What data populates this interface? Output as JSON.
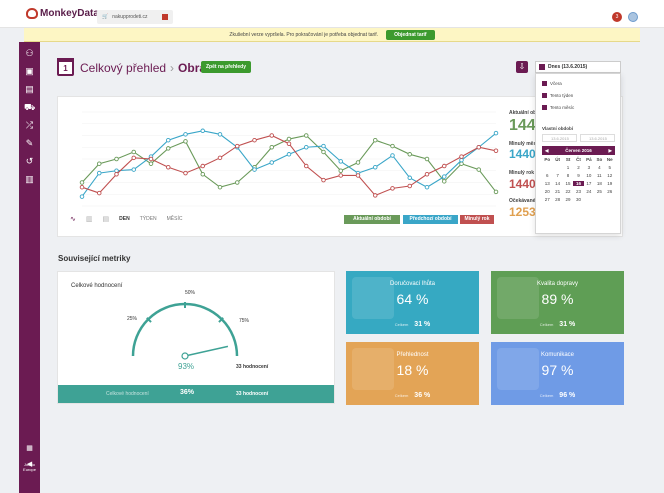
{
  "app": {
    "logo": "MonkeyData",
    "tab": "nakupprodeti.cz",
    "notifications": "3"
  },
  "banner": {
    "text": "Zkušební verze vypršela. Pro pokračování je potřeba objednat tarif.",
    "button": "Objednat tarif"
  },
  "sidebar": {
    "icons": [
      "users-icon",
      "chart-money-icon",
      "document-icon",
      "cart-icon",
      "shuffle-icon",
      "tools-icon",
      "history-icon",
      "bars-icon"
    ],
    "footer": "Job to Europe"
  },
  "header": {
    "date_day": "1",
    "title": "Celkový přehled",
    "subtitle": "Obrat",
    "back_button": "Zpět na přehledy",
    "date_range": "Dnes (13.6.2015)"
  },
  "chart_data": {
    "type": "line",
    "x": [
      1,
      2,
      3,
      4,
      5,
      6,
      7,
      8,
      9,
      10,
      11,
      12,
      13,
      14,
      15,
      16,
      17,
      18,
      19,
      20,
      21,
      22,
      23,
      24,
      25
    ],
    "yticks": [
      "",
      "",
      "",
      "",
      "",
      "",
      "",
      "",
      ""
    ],
    "ylim": [
      0,
      8
    ],
    "series": [
      {
        "name": "Aktuální období",
        "color": "#6a9a5a",
        "values": [
          2.0,
          3.6,
          4.0,
          4.6,
          3.6,
          4.9,
          5.5,
          2.7,
          1.6,
          2.0,
          3.3,
          5.0,
          5.7,
          6.0,
          4.6,
          3.0,
          3.7,
          5.6,
          5.1,
          4.4,
          4.0,
          2.1,
          3.6,
          3.1,
          1.2
        ]
      },
      {
        "name": "Předchozí období",
        "color": "#3aa6c8",
        "values": [
          0.8,
          2.8,
          3.0,
          3.1,
          4.2,
          5.6,
          6.1,
          6.4,
          6.1,
          5.0,
          3.1,
          3.7,
          4.4,
          5.0,
          5.1,
          3.8,
          2.8,
          3.3,
          4.3,
          2.4,
          1.6,
          2.5,
          3.9,
          5.0,
          6.2
        ]
      },
      {
        "name": "Minulý rok",
        "color": "#c05050",
        "values": [
          1.6,
          1.1,
          2.7,
          4.1,
          4.0,
          3.3,
          2.8,
          3.4,
          4.1,
          5.1,
          5.6,
          6.0,
          5.3,
          3.4,
          2.2,
          2.6,
          2.6,
          0.9,
          1.5,
          1.7,
          2.7,
          3.4,
          4.2,
          5.0,
          4.7
        ]
      }
    ]
  },
  "chart_controls": {
    "day": "DEN",
    "week": "TÝDEN",
    "month": "MĚSÍC"
  },
  "stats": [
    {
      "label": "Aktuální období",
      "value": "144",
      "color": "#6a9a5a"
    },
    {
      "label": "Minulý měsíc",
      "value": "1440",
      "color": "#3aa6c8"
    },
    {
      "label": "Minulý rok",
      "value": "1440",
      "color": "#c05050"
    },
    {
      "label": "Očekávané",
      "value": "1253",
      "color": "#e0a050"
    }
  ],
  "dropdown": {
    "options": [
      "Včera",
      "Tento týden",
      "Tento měsíc"
    ],
    "custom_label": "Vlastní období",
    "from": "13.6.2015",
    "to": "13.6.2015",
    "month": "Červen 2016",
    "weekdays": [
      "Po",
      "Út",
      "St",
      "Čt",
      "Pá",
      "So",
      "Ne"
    ],
    "days": [
      "",
      "",
      "1",
      "2",
      "3",
      "4",
      "5",
      "6",
      "7",
      "8",
      "9",
      "10",
      "11",
      "12",
      "13",
      "14",
      "15",
      "16",
      "17",
      "18",
      "19",
      "20",
      "21",
      "22",
      "23",
      "24",
      "25",
      "26",
      "27",
      "28",
      "29",
      "30",
      "",
      ""
    ],
    "today": "16"
  },
  "related": {
    "title": "Související metriky"
  },
  "gauge": {
    "title": "Celkové hodnocení",
    "value": "93%",
    "fraction": 0.93,
    "l25": "25%",
    "l50": "50%",
    "l75": "75%",
    "ratings": "33 hodnocení",
    "foot_label": "Celkové hodnocení",
    "foot_value": "36%",
    "foot_ratings": "33 hodnocení"
  },
  "cards": [
    {
      "title": "Doručovací lhůta",
      "value": "64 %",
      "sub_label": "Celkem",
      "sub_value": "31 %",
      "color": "#36a9c2"
    },
    {
      "title": "Kvalita dopravy",
      "value": "89 %",
      "sub_label": "Celkem",
      "sub_value": "31 %",
      "color": "#5f9e55"
    },
    {
      "title": "Přehlednost",
      "value": "18 %",
      "sub_label": "Celkem",
      "sub_value": "36 %",
      "color": "#e3a456"
    },
    {
      "title": "Komunikace",
      "value": "97 %",
      "sub_label": "Celkem",
      "sub_value": "96 %",
      "color": "#6f9be6"
    }
  ]
}
